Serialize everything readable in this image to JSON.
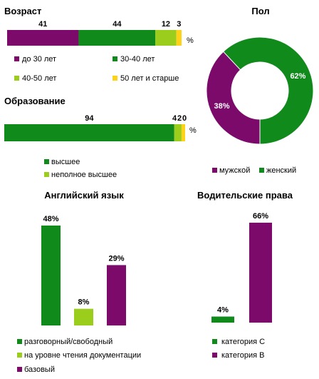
{
  "colors": {
    "purple": "#7b0a6b",
    "green": "#118a1c",
    "lime": "#9acd1c",
    "yellow": "#ffd21a"
  },
  "chart_data": [
    {
      "type": "bar",
      "orientation": "horizontal-stacked",
      "title": "Возраст",
      "unit": "%",
      "series": [
        {
          "name": "до 30 лет",
          "value": 41,
          "color": "#7b0a6b"
        },
        {
          "name": "30-40 лет",
          "value": 44,
          "color": "#118a1c"
        },
        {
          "name": "40-50 лет",
          "value": 12,
          "color": "#9acd1c"
        },
        {
          "name": "50 лет и старше",
          "value": 3,
          "color": "#ffd21a"
        }
      ]
    },
    {
      "type": "pie",
      "title": "Пол",
      "donut": true,
      "series": [
        {
          "name": "мужской",
          "value": 38,
          "label": "38%",
          "color": "#7b0a6b"
        },
        {
          "name": "женский",
          "value": 62,
          "label": "62%",
          "color": "#118a1c"
        }
      ]
    },
    {
      "type": "bar",
      "orientation": "horizontal-stacked",
      "title": "Образование",
      "unit": "%",
      "series": [
        {
          "name": "высшее",
          "value": 94,
          "color": "#118a1c"
        },
        {
          "name": "неполное высшее",
          "value": 4,
          "color": "#9acd1c"
        },
        {
          "name": "",
          "value": 2,
          "color": "#ffd21a"
        },
        {
          "name": "",
          "value": 0,
          "color": "#ffd21a"
        }
      ]
    },
    {
      "type": "bar",
      "title": "Английский язык",
      "ylim": [
        0,
        48
      ],
      "series": [
        {
          "name": "разговорный/свободный",
          "value": 48,
          "label": "48%",
          "color": "#118a1c"
        },
        {
          "name": "на уровне чтения документации",
          "value": 8,
          "label": "8%",
          "color": "#9acd1c"
        },
        {
          "name": "базовый",
          "value": 29,
          "label": "29%",
          "color": "#7b0a6b"
        }
      ]
    },
    {
      "type": "bar",
      "title": "Водительские права",
      "ylim": [
        0,
        66
      ],
      "series": [
        {
          "name": "категория  С",
          "value": 4,
          "label": "4%",
          "color": "#118a1c"
        },
        {
          "name": "категория  В",
          "value": 66,
          "label": "66%",
          "color": "#7b0a6b"
        }
      ]
    }
  ]
}
